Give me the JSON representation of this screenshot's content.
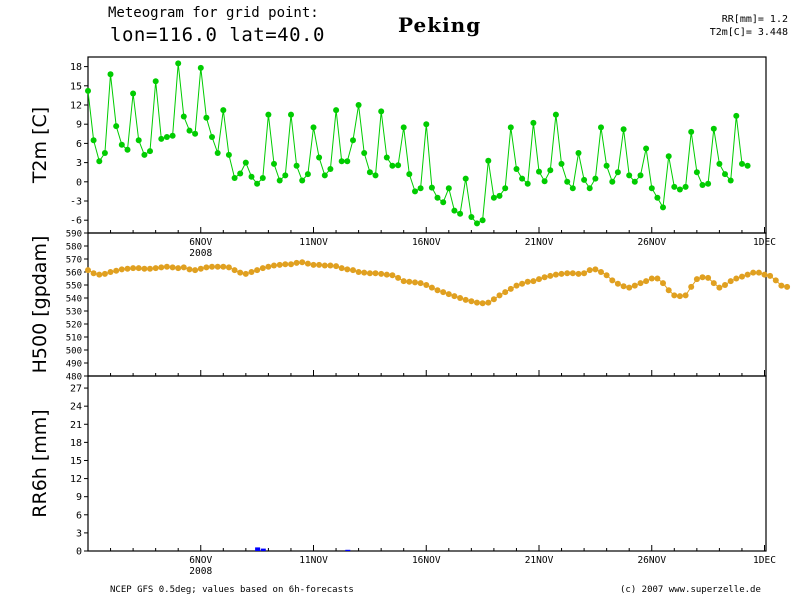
{
  "header": {
    "title_line1": "Meteogram for grid point:",
    "title_line2": "lon=116.0  lat=40.0",
    "city": "Peking",
    "stat_rr": "RR[mm]= 1.2",
    "stat_t2m": "T2m[C]= 3.448"
  },
  "footer": {
    "source": "NCEP GFS 0.5deg; values based on 6h-forecasts",
    "credit": "(c) 2007 www.superzelle.de"
  },
  "chart_data": [
    {
      "type": "line",
      "ylabel": "T2m [C]",
      "ylim": [
        -8,
        19.5
      ],
      "yticks": [
        -6,
        -3,
        0,
        3,
        6,
        9,
        12,
        15,
        18
      ],
      "color": "#00cc00",
      "x_start_day": 1,
      "step_hours": 6,
      "series": [
        {
          "values": [
            14.2,
            6.5,
            3.2,
            4.5,
            16.8,
            8.7,
            5.8,
            5.0,
            13.8,
            6.5,
            4.2,
            4.8,
            15.7,
            6.7,
            7.0,
            7.2,
            18.5,
            10.2,
            8.0,
            7.5,
            17.8,
            10.0,
            7.0,
            4.5,
            11.2,
            4.2,
            0.6,
            1.3,
            3.0,
            0.8,
            -0.3,
            0.6,
            10.5,
            2.8,
            0.2,
            1.0,
            10.5,
            2.5,
            0.2,
            1.2,
            8.5,
            3.8,
            1.0,
            2.0,
            11.2,
            3.2,
            3.2,
            6.5,
            12.0,
            4.5,
            1.5,
            1.0,
            11.0,
            3.8,
            2.5,
            2.6,
            8.5,
            1.2,
            -1.5,
            -1.0,
            9.0,
            -0.9,
            -2.5,
            -3.2,
            -1.0,
            -4.5,
            -5.0,
            0.5,
            -5.5,
            -6.5,
            -6.0,
            3.3,
            -2.5,
            -2.2,
            -1.0,
            8.5,
            2.0,
            0.5,
            -0.3,
            9.2,
            1.6,
            0.1,
            1.8,
            10.5,
            2.8,
            0.0,
            -1.0,
            4.5,
            0.3,
            -1.0,
            0.5,
            8.5,
            2.5,
            0.0,
            1.5,
            8.2,
            1.0,
            0.0,
            1.0,
            5.2,
            -1.0,
            -2.5,
            -4.0,
            4.0,
            -0.8,
            -1.2,
            -0.8,
            7.8,
            1.5,
            -0.5,
            -0.3,
            8.3,
            2.8,
            1.2,
            0.2,
            10.3,
            2.8,
            2.5
          ]
        }
      ]
    },
    {
      "type": "line",
      "ylabel": "H500 [gpdam]",
      "ylim": [
        480,
        590
      ],
      "yticks": [
        480,
        490,
        500,
        510,
        520,
        530,
        540,
        550,
        560,
        570,
        580,
        590
      ],
      "color": "#e0a020",
      "x_start_day": 1,
      "step_hours": 6,
      "series": [
        {
          "values": [
            561.5,
            559.0,
            558.0,
            558.5,
            560.0,
            561.0,
            562.0,
            562.5,
            563.0,
            563.0,
            562.5,
            562.5,
            563.0,
            563.5,
            564.0,
            563.5,
            563.0,
            563.5,
            562.0,
            561.5,
            562.5,
            563.5,
            564.0,
            564.0,
            564.0,
            563.5,
            561.5,
            559.5,
            558.5,
            560.0,
            561.5,
            563.0,
            564.0,
            565.0,
            565.5,
            566.0,
            566.0,
            567.0,
            567.5,
            566.5,
            565.5,
            565.5,
            565.0,
            565.0,
            564.5,
            563.0,
            562.0,
            561.5,
            560.0,
            559.5,
            559.0,
            559.0,
            558.5,
            558.0,
            557.5,
            555.5,
            553.0,
            552.5,
            552.0,
            551.5,
            550.0,
            548.0,
            546.0,
            544.5,
            543.0,
            541.5,
            540.0,
            538.5,
            537.5,
            536.5,
            536.0,
            536.5,
            539.0,
            542.0,
            544.5,
            547.0,
            549.5,
            551.0,
            552.5,
            553.0,
            554.5,
            556.0,
            557.0,
            558.0,
            558.5,
            559.0,
            559.0,
            558.5,
            559.0,
            561.5,
            562.0,
            560.0,
            557.5,
            553.5,
            551.0,
            549.0,
            548.0,
            549.5,
            551.5,
            553.0,
            555.0,
            555.0,
            551.5,
            546.0,
            542.0,
            541.5,
            542.0,
            548.5,
            554.5,
            556.0,
            555.5,
            551.5,
            548.0,
            550.0,
            553.0,
            555.0,
            556.5,
            558.0,
            559.5,
            559.5,
            558.0,
            557.0,
            553.5,
            549.5,
            548.5
          ]
        }
      ]
    },
    {
      "type": "bar",
      "ylabel": "RR6h [mm]",
      "ylim": [
        0,
        29
      ],
      "yticks": [
        0,
        3,
        6,
        9,
        12,
        15,
        18,
        21,
        24,
        27
      ],
      "color": "#0000ff",
      "x_start_day": 1,
      "step_hours": 6,
      "series": [
        {
          "values": [
            {
              "i": 30,
              "v": 0.6
            },
            {
              "i": 31,
              "v": 0.4
            },
            {
              "i": 46,
              "v": 0.2
            }
          ]
        }
      ]
    }
  ],
  "x_axis": {
    "ticks": [
      {
        "day": 6,
        "label": "6NOV"
      },
      {
        "day": 11,
        "label": "11NOV"
      },
      {
        "day": 16,
        "label": "16NOV"
      },
      {
        "day": 21,
        "label": "21NOV"
      },
      {
        "day": 26,
        "label": "26NOV"
      },
      {
        "day": 31,
        "label": "1DEC"
      }
    ],
    "year_label": "2008"
  }
}
